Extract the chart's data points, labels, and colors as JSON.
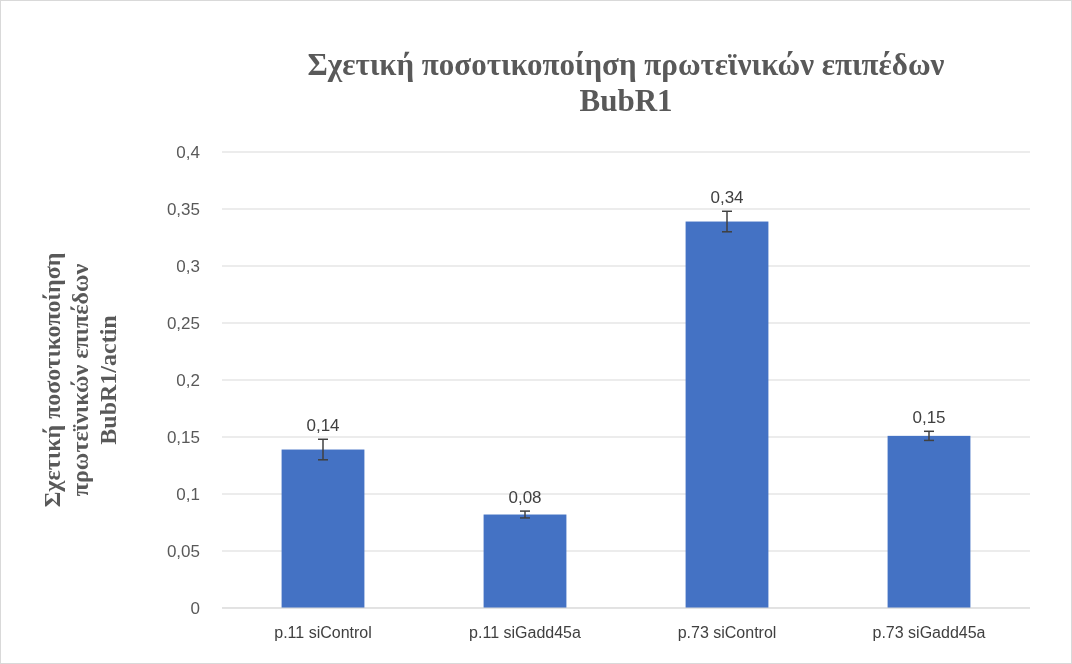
{
  "chart_data": {
    "type": "bar",
    "title": "Σχετική ποσοτικοποίηση πρωτεϊνικών επιπέδων BubR1",
    "ylabel": "Σχετική ποσοτικοποίηση πρωτεϊνικών επιπέδων BubR1/actin",
    "categories": [
      "p.11 siControl",
      "p.11 siGadd45a",
      "p.73 siControl",
      "p.73 siGadd45a"
    ],
    "values": [
      0.139,
      0.082,
      0.339,
      0.151
    ],
    "errors": [
      0.009,
      0.003,
      0.009,
      0.004
    ],
    "value_labels": [
      "0,14",
      "0,08",
      "0,34",
      "0,15"
    ],
    "color": "#4472c4",
    "ylim": [
      0,
      0.4
    ],
    "yticks": [
      0,
      {
        "value": 0.05,
        "label": "0,05"
      },
      {
        "value": 0.1,
        "label": "0,1"
      },
      {
        "value": 0.15,
        "label": "0,15"
      },
      {
        "value": 0.2,
        "label": "0,2"
      },
      {
        "value": 0.25,
        "label": "0,25"
      },
      {
        "value": 0.3,
        "label": "0,3"
      },
      {
        "value": 0.35,
        "label": "0,35"
      },
      {
        "value": 0.4,
        "label": "0,4"
      }
    ],
    "grid": "y"
  }
}
